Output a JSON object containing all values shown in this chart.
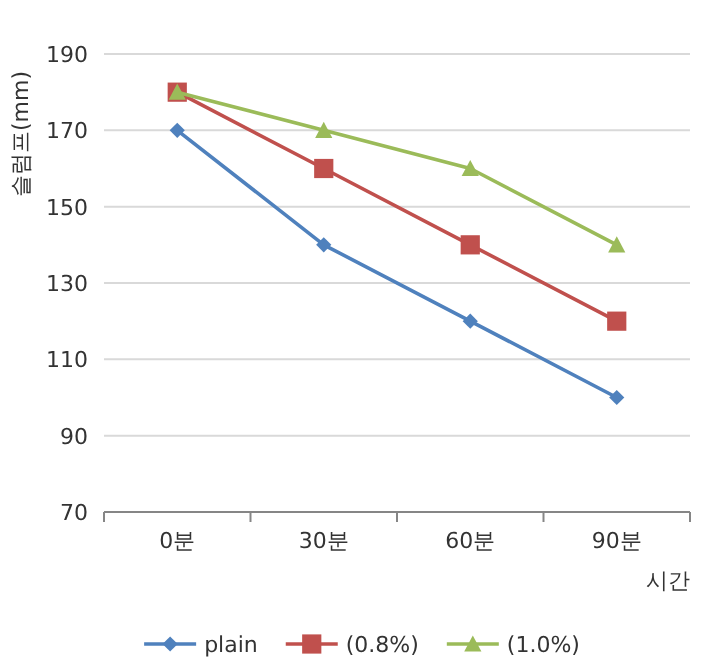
{
  "chart_data": {
    "type": "line",
    "ylabel": "슬럼프(mm)",
    "xlabel": "시간",
    "categories": [
      "0분",
      "30분",
      "60분",
      "90분"
    ],
    "series": [
      {
        "name": "plain",
        "color": "#4f81bd",
        "marker": "diamond",
        "values": [
          170,
          140,
          120,
          100
        ]
      },
      {
        "name": "(0.8%)",
        "color": "#c0504d",
        "marker": "square",
        "values": [
          180,
          160,
          140,
          120
        ]
      },
      {
        "name": "(1.0%)",
        "color": "#9bbb59",
        "marker": "triangle",
        "values": [
          180,
          170,
          160,
          140
        ]
      }
    ],
    "ylim": [
      70,
      190
    ],
    "yticks": [
      70,
      90,
      110,
      130,
      150,
      170,
      190
    ],
    "grid": "y",
    "legend": "bottom"
  }
}
